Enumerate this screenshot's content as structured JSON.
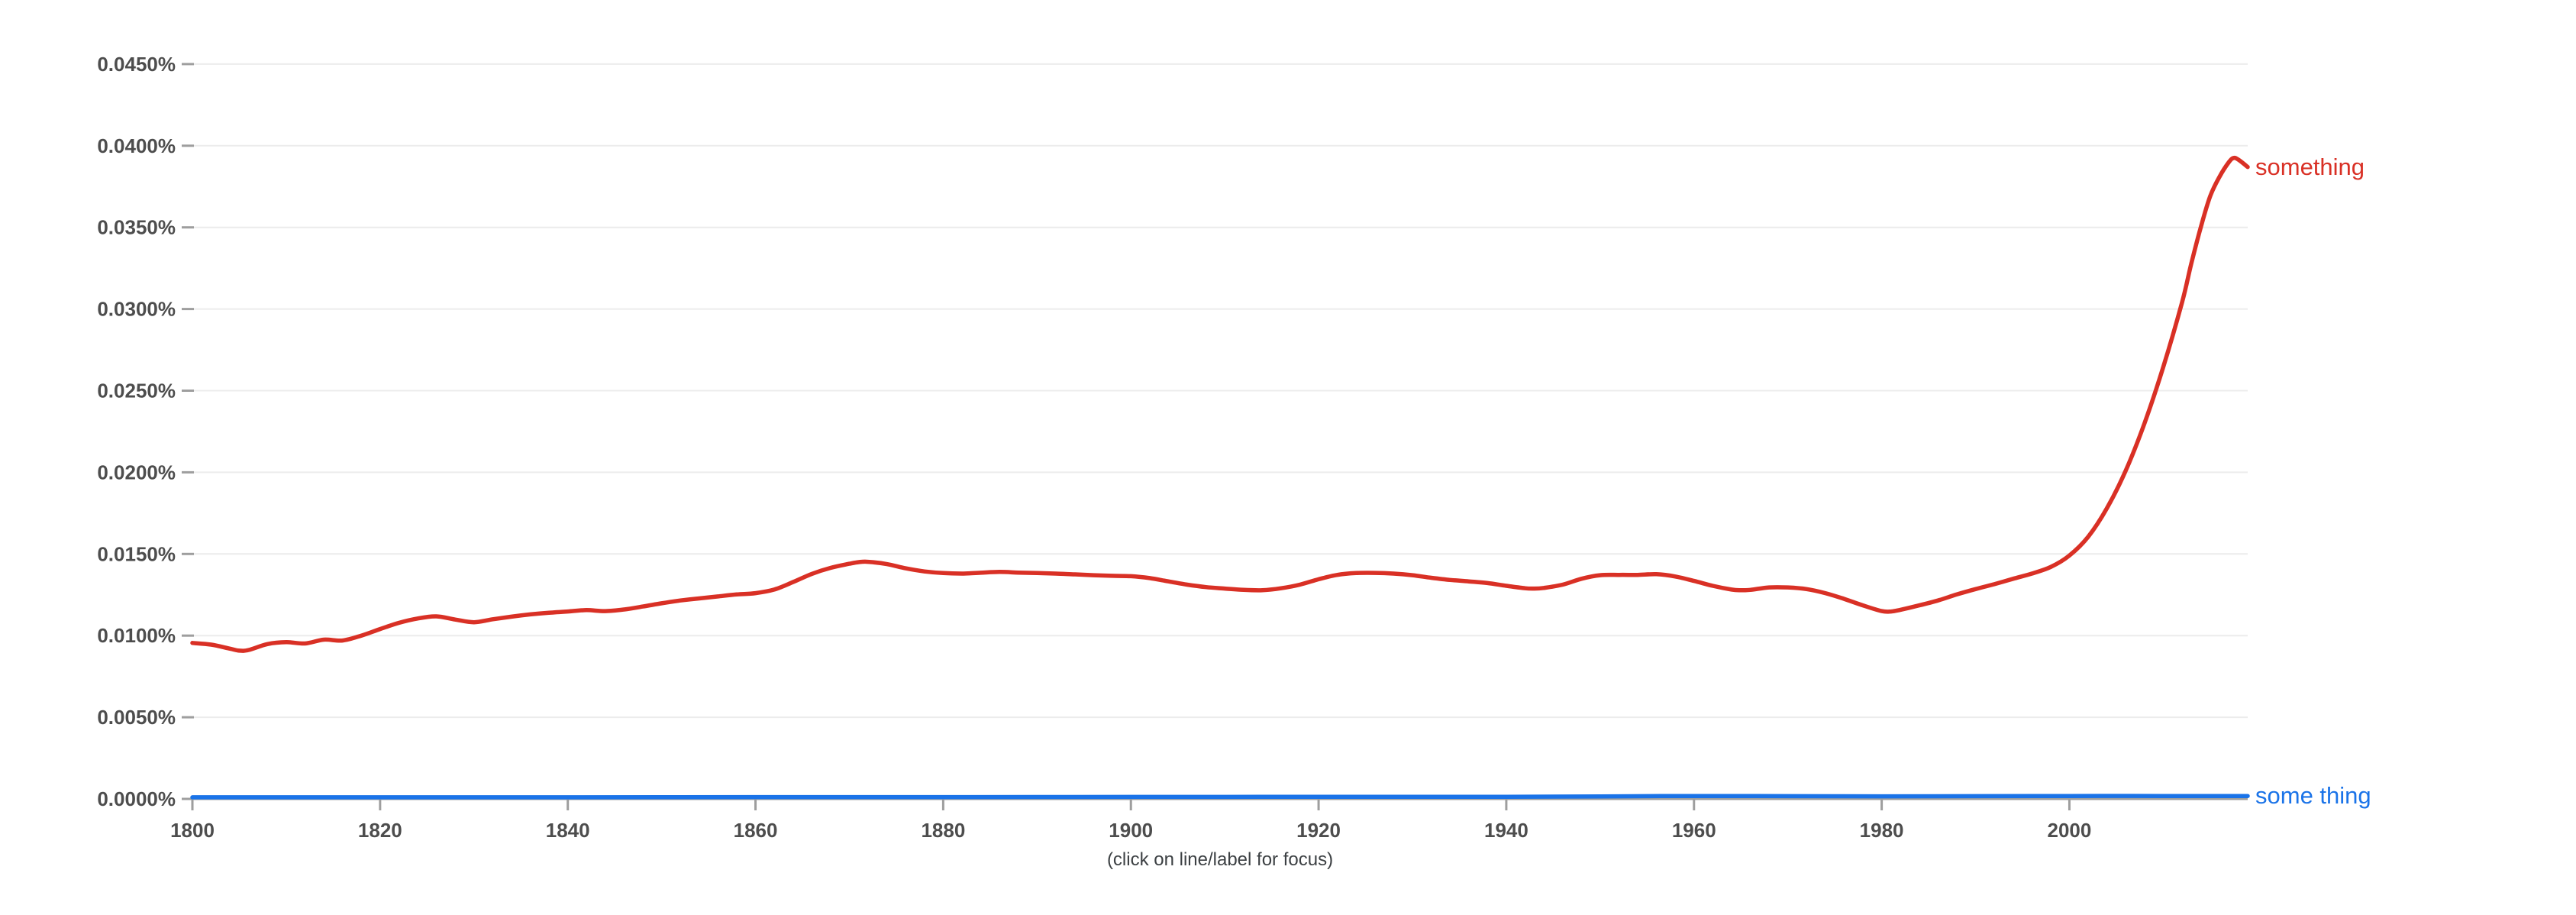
{
  "page": {
    "background_color": "#ffffff"
  },
  "footer": {
    "hint": "(click on line/label for focus)"
  },
  "chart_data": {
    "type": "line",
    "title": "",
    "xlabel": "",
    "ylabel": "",
    "grid": true,
    "legend_position": "line-end-labels",
    "x_range": [
      1800,
      2019
    ],
    "y_range_percent": [
      0.0,
      0.045
    ],
    "x_ticks": [
      {
        "value": 1800,
        "label": "1800"
      },
      {
        "value": 1820,
        "label": "1820"
      },
      {
        "value": 1840,
        "label": "1840"
      },
      {
        "value": 1860,
        "label": "1860"
      },
      {
        "value": 1880,
        "label": "1880"
      },
      {
        "value": 1900,
        "label": "1900"
      },
      {
        "value": 1920,
        "label": "1920"
      },
      {
        "value": 1940,
        "label": "1940"
      },
      {
        "value": 1960,
        "label": "1960"
      },
      {
        "value": 1980,
        "label": "1980"
      },
      {
        "value": 2000,
        "label": "2000"
      }
    ],
    "y_ticks": [
      {
        "value": 0.0,
        "label": "0.0000%"
      },
      {
        "value": 0.005,
        "label": "0.0050%"
      },
      {
        "value": 0.01,
        "label": "0.0100%"
      },
      {
        "value": 0.015,
        "label": "0.0150%"
      },
      {
        "value": 0.02,
        "label": "0.0200%"
      },
      {
        "value": 0.025,
        "label": "0.0250%"
      },
      {
        "value": 0.03,
        "label": "0.0300%"
      },
      {
        "value": 0.035,
        "label": "0.0350%"
      },
      {
        "value": 0.04,
        "label": "0.0400%"
      },
      {
        "value": 0.045,
        "label": "0.0450%"
      }
    ],
    "axis_colors": {
      "gridline": "#ececec",
      "baseline": "#9e9e9e",
      "tick_mark": "#9e9e9e",
      "tick_text": "#4d4d4d"
    },
    "series": [
      {
        "name": "something",
        "color": "#d93025",
        "points_unit": "percent",
        "points": [
          [
            1800,
            0.00955
          ],
          [
            1802,
            0.00945
          ],
          [
            1804,
            0.0092
          ],
          [
            1805,
            0.00908
          ],
          [
            1806,
            0.00912
          ],
          [
            1808,
            0.00948
          ],
          [
            1810,
            0.0096
          ],
          [
            1812,
            0.00952
          ],
          [
            1814,
            0.00975
          ],
          [
            1816,
            0.0097
          ],
          [
            1818,
            0.01
          ],
          [
            1820,
            0.0104
          ],
          [
            1822,
            0.01078
          ],
          [
            1824,
            0.01105
          ],
          [
            1826,
            0.01118
          ],
          [
            1828,
            0.01098
          ],
          [
            1830,
            0.01082
          ],
          [
            1832,
            0.011
          ],
          [
            1834,
            0.01116
          ],
          [
            1836,
            0.0113
          ],
          [
            1838,
            0.0114
          ],
          [
            1840,
            0.01148
          ],
          [
            1842,
            0.01156
          ],
          [
            1844,
            0.0115
          ],
          [
            1846,
            0.0116
          ],
          [
            1848,
            0.01178
          ],
          [
            1850,
            0.01198
          ],
          [
            1852,
            0.01215
          ],
          [
            1854,
            0.01228
          ],
          [
            1856,
            0.0124
          ],
          [
            1858,
            0.01252
          ],
          [
            1860,
            0.0126
          ],
          [
            1862,
            0.01282
          ],
          [
            1864,
            0.01328
          ],
          [
            1866,
            0.01378
          ],
          [
            1868,
            0.01415
          ],
          [
            1870,
            0.0144
          ],
          [
            1871,
            0.0145
          ],
          [
            1872,
            0.01452
          ],
          [
            1874,
            0.01438
          ],
          [
            1876,
            0.01412
          ],
          [
            1878,
            0.01393
          ],
          [
            1880,
            0.01383
          ],
          [
            1882,
            0.0138
          ],
          [
            1884,
            0.01385
          ],
          [
            1886,
            0.0139
          ],
          [
            1888,
            0.01386
          ],
          [
            1890,
            0.01383
          ],
          [
            1892,
            0.0138
          ],
          [
            1894,
            0.01375
          ],
          [
            1896,
            0.0137
          ],
          [
            1898,
            0.01366
          ],
          [
            1900,
            0.01364
          ],
          [
            1902,
            0.01352
          ],
          [
            1904,
            0.01332
          ],
          [
            1906,
            0.01312
          ],
          [
            1908,
            0.01297
          ],
          [
            1910,
            0.01288
          ],
          [
            1912,
            0.0128
          ],
          [
            1914,
            0.01278
          ],
          [
            1916,
            0.0129
          ],
          [
            1918,
            0.01312
          ],
          [
            1920,
            0.01345
          ],
          [
            1922,
            0.01372
          ],
          [
            1924,
            0.01383
          ],
          [
            1926,
            0.01384
          ],
          [
            1928,
            0.0138
          ],
          [
            1930,
            0.0137
          ],
          [
            1932,
            0.01354
          ],
          [
            1934,
            0.01341
          ],
          [
            1936,
            0.01332
          ],
          [
            1938,
            0.01322
          ],
          [
            1940,
            0.01305
          ],
          [
            1942,
            0.0129
          ],
          [
            1943,
            0.01288
          ],
          [
            1944,
            0.01292
          ],
          [
            1946,
            0.01312
          ],
          [
            1948,
            0.01348
          ],
          [
            1950,
            0.0137
          ],
          [
            1952,
            0.01372
          ],
          [
            1954,
            0.01372
          ],
          [
            1956,
            0.01376
          ],
          [
            1958,
            0.01362
          ],
          [
            1960,
            0.01335
          ],
          [
            1962,
            0.01305
          ],
          [
            1964,
            0.01282
          ],
          [
            1965,
            0.01278
          ],
          [
            1966,
            0.0128
          ],
          [
            1968,
            0.01295
          ],
          [
            1970,
            0.01295
          ],
          [
            1972,
            0.01285
          ],
          [
            1974,
            0.0126
          ],
          [
            1976,
            0.01225
          ],
          [
            1978,
            0.01185
          ],
          [
            1980,
            0.0115
          ],
          [
            1981,
            0.01148
          ],
          [
            1982,
            0.01158
          ],
          [
            1984,
            0.01185
          ],
          [
            1986,
            0.01215
          ],
          [
            1988,
            0.01252
          ],
          [
            1990,
            0.01285
          ],
          [
            1992,
            0.01315
          ],
          [
            1994,
            0.01348
          ],
          [
            1996,
            0.0138
          ],
          [
            1998,
            0.0142
          ],
          [
            2000,
            0.0149
          ],
          [
            2002,
            0.01605
          ],
          [
            2004,
            0.0178
          ],
          [
            2006,
            0.0201
          ],
          [
            2008,
            0.023
          ],
          [
            2010,
            0.02645
          ],
          [
            2012,
            0.0304
          ],
          [
            2013,
            0.0328
          ],
          [
            2014,
            0.035
          ],
          [
            2015,
            0.0369
          ],
          [
            2016,
            0.0381
          ],
          [
            2017,
            0.039
          ],
          [
            2017.5,
            0.03925
          ],
          [
            2018,
            0.03915
          ],
          [
            2019,
            0.0387
          ]
        ]
      },
      {
        "name": "some thing",
        "color": "#1a73e8",
        "points_unit": "percent",
        "points": [
          [
            1800,
            0.0001
          ],
          [
            1820,
            0.0001
          ],
          [
            1840,
            0.0001
          ],
          [
            1860,
            0.00011
          ],
          [
            1880,
            0.00011
          ],
          [
            1900,
            0.00012
          ],
          [
            1920,
            0.00013
          ],
          [
            1940,
            0.00013
          ],
          [
            1950,
            0.00015
          ],
          [
            1955,
            0.00017
          ],
          [
            1960,
            0.00018
          ],
          [
            1970,
            0.00017
          ],
          [
            1980,
            0.00016
          ],
          [
            1990,
            0.00017
          ],
          [
            2000,
            0.00018
          ],
          [
            2010,
            0.00018
          ],
          [
            2019,
            0.00018
          ]
        ]
      }
    ]
  }
}
